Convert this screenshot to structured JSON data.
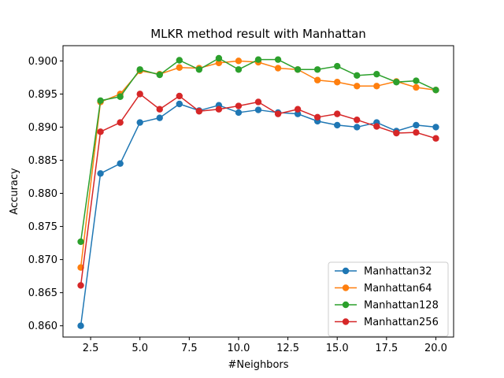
{
  "chart_data": {
    "type": "line",
    "title": "MLKR method result with Manhattan",
    "xlabel": "#Neighbors",
    "ylabel": "Accuracy",
    "xlim": [
      1.1,
      20.9
    ],
    "ylim": [
      0.8583,
      0.9023
    ],
    "xticks": [
      2.5,
      5.0,
      7.5,
      10.0,
      12.5,
      15.0,
      17.5,
      20.0
    ],
    "xtick_labels": [
      "2.5",
      "5.0",
      "7.5",
      "10.0",
      "12.5",
      "15.0",
      "17.5",
      "20.0"
    ],
    "yticks": [
      0.86,
      0.865,
      0.87,
      0.875,
      0.88,
      0.885,
      0.89,
      0.895,
      0.9
    ],
    "ytick_labels": [
      "0.860",
      "0.865",
      "0.870",
      "0.875",
      "0.880",
      "0.885",
      "0.890",
      "0.895",
      "0.900"
    ],
    "grid": false,
    "legend_position": "lower-right",
    "x": [
      2,
      3,
      4,
      5,
      6,
      7,
      8,
      9,
      10,
      11,
      12,
      13,
      14,
      15,
      16,
      17,
      18,
      19,
      20
    ],
    "series": [
      {
        "name": "Manhattan32",
        "color": "#1f77b4",
        "values": [
          0.86,
          0.883,
          0.8845,
          0.8907,
          0.8914,
          0.8935,
          0.8925,
          0.8933,
          0.8922,
          0.8926,
          0.8922,
          0.892,
          0.8909,
          0.8903,
          0.89,
          0.8907,
          0.8894,
          0.8903,
          0.89
        ]
      },
      {
        "name": "Manhattan64",
        "color": "#ff7f0e",
        "values": [
          0.8688,
          0.8938,
          0.895,
          0.8985,
          0.898,
          0.899,
          0.8989,
          0.8997,
          0.9,
          0.8998,
          0.8989,
          0.8987,
          0.8971,
          0.8968,
          0.8962,
          0.8962,
          0.8969,
          0.896,
          0.8956
        ]
      },
      {
        "name": "Manhattan128",
        "color": "#2ca02c",
        "values": [
          0.8727,
          0.894,
          0.8946,
          0.8987,
          0.8979,
          0.9001,
          0.8987,
          0.9004,
          0.8987,
          0.9002,
          0.9002,
          0.8987,
          0.8987,
          0.8992,
          0.8978,
          0.898,
          0.8968,
          0.897,
          0.8956
        ]
      },
      {
        "name": "Manhattan256",
        "color": "#d62728",
        "values": [
          0.8661,
          0.8893,
          0.8907,
          0.895,
          0.8927,
          0.8947,
          0.8924,
          0.8927,
          0.8932,
          0.8938,
          0.892,
          0.8927,
          0.8915,
          0.892,
          0.8911,
          0.8901,
          0.8891,
          0.8892,
          0.8883
        ]
      }
    ]
  }
}
